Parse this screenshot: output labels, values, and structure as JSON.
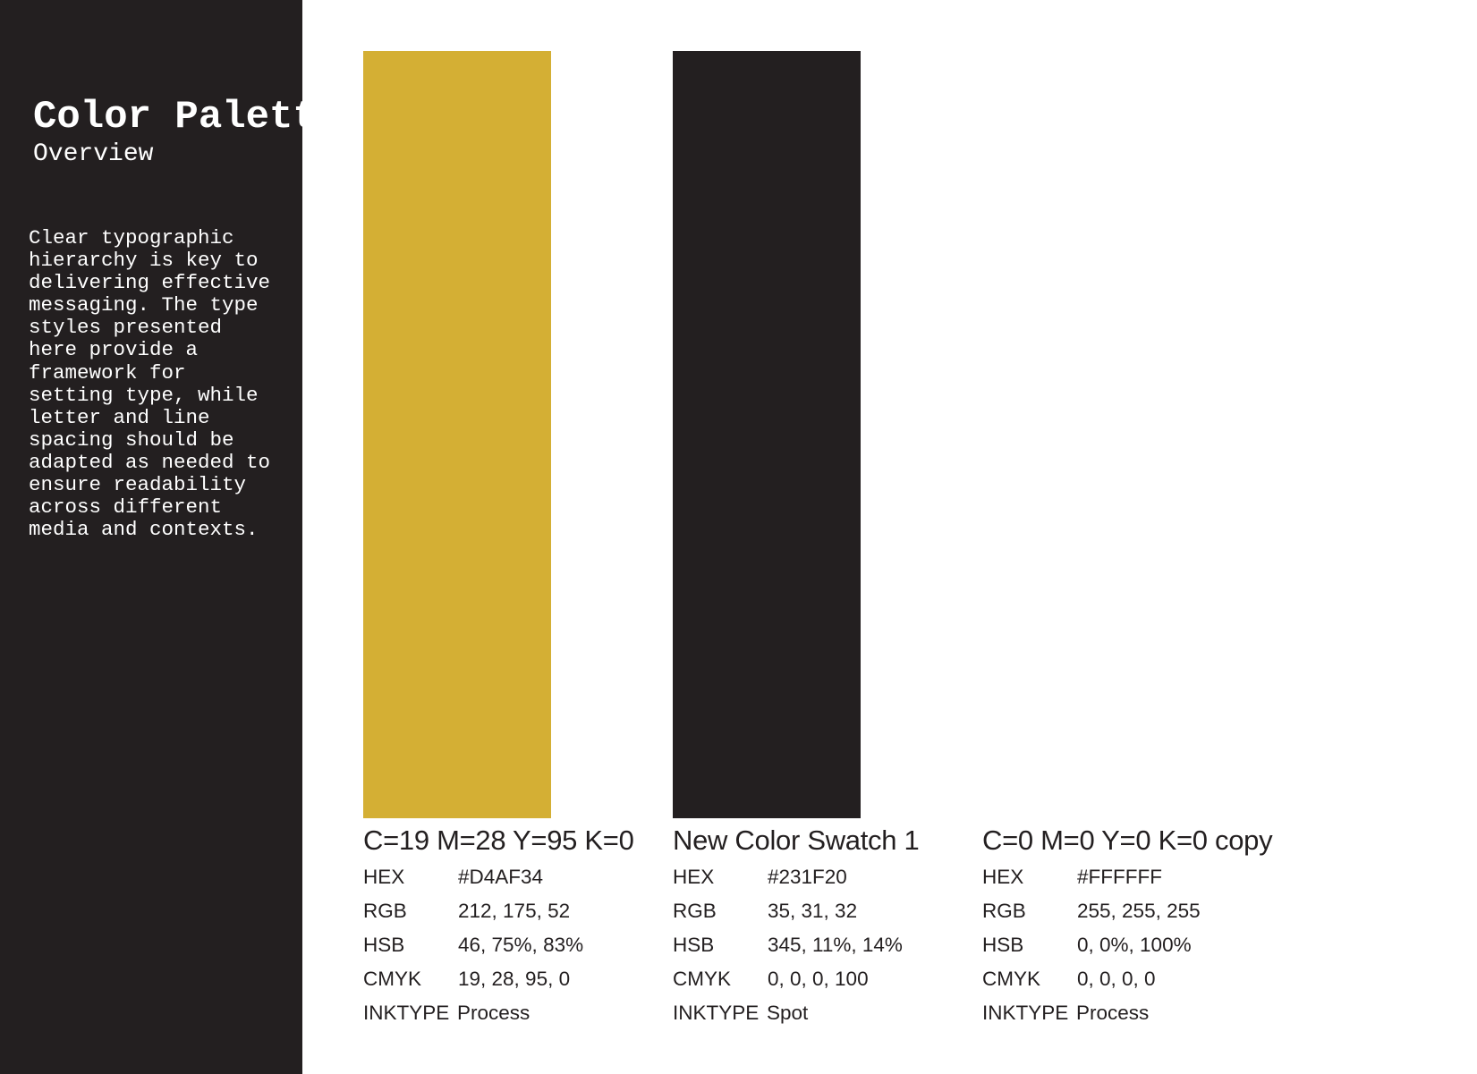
{
  "sidebar": {
    "title": "Color Palette",
    "subtitle": "Overview",
    "body": "Clear typographic\nhierarchy is key to\ndelivering effective\nmessaging. The type\nstyles presented\nhere provide a\nframework for\nsetting type, while\nletter and line\nspacing should be\nadapted as needed to\nensure readability\nacross different\nmedia and contexts.",
    "background": "#231F20"
  },
  "swatches": [
    {
      "name": "C=19 M=28 Y=95 K=0",
      "color": "#D4AF34",
      "specs": [
        {
          "label": "HEX",
          "value": "#D4AF34"
        },
        {
          "label": "RGB",
          "value": "212, 175, 52"
        },
        {
          "label": "HSB",
          "value": "46, 75%, 83%"
        },
        {
          "label": "CMYK",
          "value": "19, 28, 95, 0"
        },
        {
          "label": "INKTYPE",
          "value": "Process"
        }
      ]
    },
    {
      "name": "New Color Swatch 1",
      "color": "#231F20",
      "specs": [
        {
          "label": "HEX",
          "value": "#231F20"
        },
        {
          "label": "RGB",
          "value": "35, 31, 32"
        },
        {
          "label": "HSB",
          "value": "345, 11%, 14%"
        },
        {
          "label": "CMYK",
          "value": "0, 0, 0, 100"
        },
        {
          "label": "INKTYPE",
          "value": "Spot"
        }
      ]
    },
    {
      "name": "C=0 M=0 Y=0 K=0 copy",
      "color": "#FFFFFF",
      "specs": [
        {
          "label": "HEX",
          "value": "#FFFFFF"
        },
        {
          "label": "RGB",
          "value": "255, 255, 255"
        },
        {
          "label": "HSB",
          "value": "0, 0%, 100%"
        },
        {
          "label": "CMYK",
          "value": "0, 0, 0, 0"
        },
        {
          "label": "INKTYPE",
          "value": "Process"
        }
      ]
    }
  ]
}
